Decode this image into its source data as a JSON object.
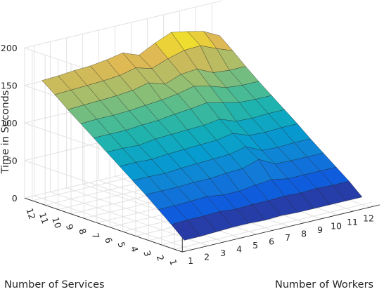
{
  "chart_data": {
    "type": "surface",
    "title": "",
    "xlabel": "Number of Workers",
    "ylabel": "Number of Services",
    "zlabel": "Time in Seconds",
    "x_ticks": [
      "1",
      "2",
      "3",
      "4",
      "5",
      "6",
      "7",
      "8",
      "9",
      "10",
      "11",
      "12"
    ],
    "y_ticks": [
      "1",
      "2",
      "3",
      "4",
      "5",
      "6",
      "7",
      "8",
      "9",
      "10",
      "11",
      "12"
    ],
    "z_ticks": [
      "0",
      "50",
      "100",
      "150",
      "200"
    ],
    "zlim": [
      0,
      200
    ],
    "grid": true,
    "colormap": "parula",
    "x": [
      1,
      2,
      3,
      4,
      5,
      6,
      7,
      8,
      9,
      10,
      11,
      12
    ],
    "y": [
      1,
      2,
      3,
      4,
      5,
      6,
      7,
      8,
      9,
      10,
      11,
      12
    ],
    "z": [
      [
        9,
        9,
        10,
        11,
        11,
        10,
        11,
        10,
        10,
        10,
        10,
        10
      ],
      [
        24,
        25,
        25,
        26,
        24,
        25,
        25,
        26,
        25,
        26,
        25,
        25
      ],
      [
        38,
        38,
        39,
        40,
        37,
        37,
        40,
        42,
        38,
        38,
        38,
        38
      ],
      [
        52,
        52,
        52,
        53,
        53,
        55,
        56,
        63,
        52,
        51,
        51,
        51
      ],
      [
        65,
        65,
        64,
        66,
        67,
        68,
        69,
        74,
        64,
        63,
        64,
        64
      ],
      [
        78,
        78,
        77,
        79,
        80,
        81,
        82,
        86,
        78,
        77,
        78,
        78
      ],
      [
        91,
        91,
        90,
        93,
        94,
        95,
        96,
        99,
        91,
        90,
        91,
        91
      ],
      [
        104,
        104,
        104,
        106,
        107,
        110,
        112,
        115,
        110,
        105,
        104,
        104
      ],
      [
        117,
        118,
        118,
        119,
        121,
        123,
        126,
        131,
        126,
        119,
        117,
        117
      ],
      [
        130,
        131,
        132,
        133,
        135,
        140,
        133,
        141,
        143,
        133,
        131,
        131
      ],
      [
        144,
        145,
        146,
        147,
        149,
        154,
        148,
        156,
        162,
        163,
        154,
        146
      ],
      [
        157,
        158,
        160,
        161,
        164,
        168,
        160,
        171,
        180,
        176,
        171,
        160
      ]
    ]
  }
}
